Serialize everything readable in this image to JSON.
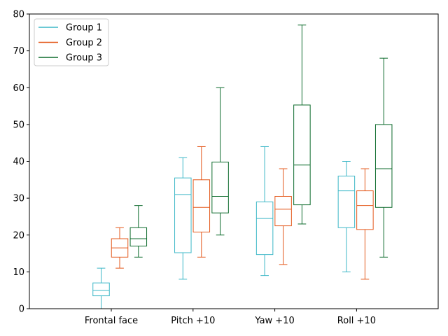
{
  "chart_data": {
    "type": "boxplot",
    "categories": [
      "Frontal face",
      "Pitch +10",
      "Yaw +10",
      "Roll +10"
    ],
    "ylim": [
      0,
      80
    ],
    "yticks": [
      0,
      10,
      20,
      30,
      40,
      50,
      60,
      70,
      80
    ],
    "grid": false,
    "legend": "top-left",
    "series": [
      {
        "name": "Group 1",
        "color": "#3cb7c7",
        "boxes": [
          {
            "min": 0,
            "q1": 3.5,
            "median": 5,
            "q3": 7,
            "max": 11
          },
          {
            "min": 8,
            "q1": 15.2,
            "median": 31,
            "q3": 35.5,
            "max": 41
          },
          {
            "min": 9,
            "q1": 14.7,
            "median": 24.5,
            "q3": 29,
            "max": 44
          },
          {
            "min": 10,
            "q1": 22,
            "median": 32,
            "q3": 36,
            "max": 40
          }
        ]
      },
      {
        "name": "Group 2",
        "color": "#e4591c",
        "boxes": [
          {
            "min": 11,
            "q1": 14,
            "median": 16.5,
            "q3": 19,
            "max": 22
          },
          {
            "min": 14,
            "q1": 20.8,
            "median": 27.5,
            "q3": 35,
            "max": 44
          },
          {
            "min": 12,
            "q1": 22.5,
            "median": 27,
            "q3": 30.5,
            "max": 38
          },
          {
            "min": 8,
            "q1": 21.5,
            "median": 28,
            "q3": 32,
            "max": 38
          }
        ]
      },
      {
        "name": "Group 3",
        "color": "#0d6b2c",
        "boxes": [
          {
            "min": 14,
            "q1": 17,
            "median": 19,
            "q3": 22,
            "max": 28
          },
          {
            "min": 20,
            "q1": 26,
            "median": 30.5,
            "q3": 39.8,
            "max": 60
          },
          {
            "min": 23,
            "q1": 28.2,
            "median": 39,
            "q3": 55.3,
            "max": 77
          },
          {
            "min": 14,
            "q1": 27.5,
            "median": 38,
            "q3": 50,
            "max": 68
          }
        ]
      }
    ]
  }
}
